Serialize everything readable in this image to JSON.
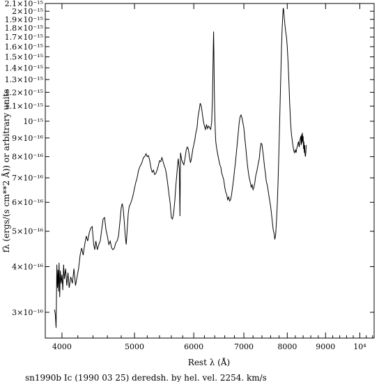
{
  "chart_data": {
    "type": "line",
    "title": "",
    "caption": "sn1990b Ic (1990 03 25) deredsh. by hel. vel.  2254. km/s",
    "xlabel": "Rest λ (Å)",
    "ylabel": "fλ (ergs/(s cm**2 Å)) or arbitrary units",
    "xscale": "log",
    "yscale": "log",
    "xlim": [
      3800,
      10450
    ],
    "ylim": [
      2.55e-16,
      2.1e-15
    ],
    "x_ticks": [
      {
        "value": 4000,
        "label": "4000"
      },
      {
        "value": 5000,
        "label": "5000"
      },
      {
        "value": 6000,
        "label": "6000"
      },
      {
        "value": 7000,
        "label": "7000"
      },
      {
        "value": 8000,
        "label": "8000"
      },
      {
        "value": 9000,
        "label": "9000"
      },
      {
        "value": 10000,
        "label": "10⁴"
      }
    ],
    "y_ticks": [
      {
        "value": 3e-16,
        "label": "3×10⁻¹⁶"
      },
      {
        "value": 4e-16,
        "label": "4×10⁻¹⁶"
      },
      {
        "value": 5e-16,
        "label": "5×10⁻¹⁶"
      },
      {
        "value": 6e-16,
        "label": "6×10⁻¹⁶"
      },
      {
        "value": 7e-16,
        "label": "7×10⁻¹⁶"
      },
      {
        "value": 8e-16,
        "label": "8×10⁻¹⁶"
      },
      {
        "value": 9e-16,
        "label": "9×10⁻¹⁶"
      },
      {
        "value": 1e-15,
        "label": "10⁻¹⁵"
      },
      {
        "value": 1.1e-15,
        "label": "1.1×10⁻¹⁵"
      },
      {
        "value": 1.2e-15,
        "label": "1.2×10⁻¹⁵"
      },
      {
        "value": 1.3e-15,
        "label": "1.3×10⁻¹⁵"
      },
      {
        "value": 1.4e-15,
        "label": "1.4×10⁻¹⁵"
      },
      {
        "value": 1.5e-15,
        "label": "1.5×10⁻¹⁵"
      },
      {
        "value": 1.6e-15,
        "label": "1.6×10⁻¹⁵"
      },
      {
        "value": 1.7e-15,
        "label": "1.7×10⁻¹⁵"
      },
      {
        "value": 1.8e-15,
        "label": "1.8×10⁻¹⁵"
      },
      {
        "value": 1.9e-15,
        "label": "1.9×10⁻¹⁵"
      },
      {
        "value": 2e-15,
        "label": "2×10⁻¹⁵"
      },
      {
        "value": 2.1e-15,
        "label": "2.1×10⁻¹⁵"
      }
    ],
    "series": [
      {
        "color": "#000000",
        "points": [
          [
            3910,
            3.05e-16
          ],
          [
            3920,
            2.95e-16
          ],
          [
            3928,
            2.72e-16
          ],
          [
            3933,
            3.35e-16
          ],
          [
            3938,
            4.05e-16
          ],
          [
            3945,
            3.5e-16
          ],
          [
            3952,
            3.92e-16
          ],
          [
            3958,
            3.42e-16
          ],
          [
            3965,
            4.1e-16
          ],
          [
            3972,
            3.3e-16
          ],
          [
            3980,
            3.9e-16
          ],
          [
            3990,
            3.6e-16
          ],
          [
            4000,
            3.8e-16
          ],
          [
            4010,
            3.45e-16
          ],
          [
            4020,
            4.05e-16
          ],
          [
            4030,
            3.7e-16
          ],
          [
            4045,
            3.95e-16
          ],
          [
            4060,
            3.55e-16
          ],
          [
            4075,
            3.85e-16
          ],
          [
            4090,
            3.5e-16
          ],
          [
            4110,
            3.75e-16
          ],
          [
            4130,
            3.6e-16
          ],
          [
            4150,
            3.95e-16
          ],
          [
            4170,
            3.55e-16
          ],
          [
            4190,
            3.75e-16
          ],
          [
            4210,
            3.95e-16
          ],
          [
            4230,
            4.3e-16
          ],
          [
            4250,
            4.5e-16
          ],
          [
            4270,
            4.3e-16
          ],
          [
            4290,
            4.6e-16
          ],
          [
            4310,
            4.85e-16
          ],
          [
            4330,
            4.7e-16
          ],
          [
            4350,
            4.95e-16
          ],
          [
            4370,
            5.1e-16
          ],
          [
            4390,
            5.15e-16
          ],
          [
            4410,
            4.6e-16
          ],
          [
            4425,
            4.45e-16
          ],
          [
            4440,
            4.7e-16
          ],
          [
            4460,
            4.45e-16
          ],
          [
            4480,
            4.6e-16
          ],
          [
            4500,
            4.7e-16
          ],
          [
            4520,
            5.05e-16
          ],
          [
            4540,
            5.4e-16
          ],
          [
            4560,
            5.45e-16
          ],
          [
            4580,
            5.05e-16
          ],
          [
            4600,
            4.85e-16
          ],
          [
            4620,
            4.6e-16
          ],
          [
            4640,
            4.7e-16
          ],
          [
            4660,
            4.5e-16
          ],
          [
            4680,
            4.45e-16
          ],
          [
            4700,
            4.5e-16
          ],
          [
            4720,
            4.65e-16
          ],
          [
            4740,
            4.7e-16
          ],
          [
            4760,
            4.85e-16
          ],
          [
            4780,
            5.3e-16
          ],
          [
            4800,
            5.8e-16
          ],
          [
            4815,
            5.95e-16
          ],
          [
            4830,
            5.75e-16
          ],
          [
            4845,
            5.3e-16
          ],
          [
            4860,
            4.85e-16
          ],
          [
            4875,
            4.6e-16
          ],
          [
            4890,
            5.1e-16
          ],
          [
            4905,
            5.6e-16
          ],
          [
            4920,
            5.85e-16
          ],
          [
            4940,
            5.95e-16
          ],
          [
            4960,
            6.1e-16
          ],
          [
            4980,
            6.3e-16
          ],
          [
            5000,
            6.55e-16
          ],
          [
            5020,
            6.8e-16
          ],
          [
            5040,
            7e-16
          ],
          [
            5060,
            7.3e-16
          ],
          [
            5080,
            7.5e-16
          ],
          [
            5100,
            7.6e-16
          ],
          [
            5120,
            7.75e-16
          ],
          [
            5140,
            7.95e-16
          ],
          [
            5160,
            8e-16
          ],
          [
            5180,
            8.15e-16
          ],
          [
            5200,
            8e-16
          ],
          [
            5220,
            8.05e-16
          ],
          [
            5240,
            7.8e-16
          ],
          [
            5260,
            7.45e-16
          ],
          [
            5280,
            7.25e-16
          ],
          [
            5300,
            7.35e-16
          ],
          [
            5320,
            7.15e-16
          ],
          [
            5340,
            7.2e-16
          ],
          [
            5360,
            7.35e-16
          ],
          [
            5380,
            7.55e-16
          ],
          [
            5400,
            7.8e-16
          ],
          [
            5420,
            7.75e-16
          ],
          [
            5440,
            7.95e-16
          ],
          [
            5460,
            7.75e-16
          ],
          [
            5480,
            7.55e-16
          ],
          [
            5500,
            7.4e-16
          ],
          [
            5520,
            7.1e-16
          ],
          [
            5540,
            6.7e-16
          ],
          [
            5560,
            6.3e-16
          ],
          [
            5580,
            5.95e-16
          ],
          [
            5600,
            5.45e-16
          ],
          [
            5620,
            5.4e-16
          ],
          [
            5640,
            5.6e-16
          ],
          [
            5660,
            6.05e-16
          ],
          [
            5680,
            6.7e-16
          ],
          [
            5700,
            7.3e-16
          ],
          [
            5720,
            7.9e-16
          ],
          [
            5740,
            7.4e-16
          ],
          [
            5750,
            5.5e-16
          ],
          [
            5760,
            8.2e-16
          ],
          [
            5780,
            7.85e-16
          ],
          [
            5800,
            7.7e-16
          ],
          [
            5820,
            7.6e-16
          ],
          [
            5840,
            7.9e-16
          ],
          [
            5860,
            8.3e-16
          ],
          [
            5880,
            8.5e-16
          ],
          [
            5900,
            8.4e-16
          ],
          [
            5920,
            8e-16
          ],
          [
            5940,
            7.7e-16
          ],
          [
            5960,
            7.95e-16
          ],
          [
            5980,
            8.35e-16
          ],
          [
            6000,
            8.6e-16
          ],
          [
            6020,
            8.9e-16
          ],
          [
            6040,
            9.3e-16
          ],
          [
            6060,
            9.6e-16
          ],
          [
            6080,
            1.03e-15
          ],
          [
            6100,
            1.07e-15
          ],
          [
            6120,
            1.12e-15
          ],
          [
            6140,
            1.1e-15
          ],
          [
            6160,
            1.05e-15
          ],
          [
            6180,
            1e-15
          ],
          [
            6200,
            9.7e-16
          ],
          [
            6220,
            9.5e-16
          ],
          [
            6240,
            9.8e-16
          ],
          [
            6260,
            9.55e-16
          ],
          [
            6280,
            9.7e-16
          ],
          [
            6300,
            9.6e-16
          ],
          [
            6320,
            9.5e-16
          ],
          [
            6340,
            9.9e-16
          ],
          [
            6355,
            1.15e-15
          ],
          [
            6365,
            1.4e-15
          ],
          [
            6372,
            1.62e-15
          ],
          [
            6378,
            1.76e-15
          ],
          [
            6385,
            1.5e-15
          ],
          [
            6392,
            1.22e-15
          ],
          [
            6400,
            1.06e-15
          ],
          [
            6410,
            9.4e-16
          ],
          [
            6420,
            8.8e-16
          ],
          [
            6440,
            8.4e-16
          ],
          [
            6460,
            8.1e-16
          ],
          [
            6480,
            7.85e-16
          ],
          [
            6500,
            7.6e-16
          ],
          [
            6520,
            7.5e-16
          ],
          [
            6540,
            7.2e-16
          ],
          [
            6560,
            7.05e-16
          ],
          [
            6580,
            6.9e-16
          ],
          [
            6600,
            6.6e-16
          ],
          [
            6620,
            6.4e-16
          ],
          [
            6640,
            6.3e-16
          ],
          [
            6660,
            6.1e-16
          ],
          [
            6680,
            6.2e-16
          ],
          [
            6700,
            6.05e-16
          ],
          [
            6720,
            6.1e-16
          ],
          [
            6740,
            6.3e-16
          ],
          [
            6760,
            6.6e-16
          ],
          [
            6780,
            6.9e-16
          ],
          [
            6800,
            7.3e-16
          ],
          [
            6820,
            7.7e-16
          ],
          [
            6840,
            8.2e-16
          ],
          [
            6860,
            8.7e-16
          ],
          [
            6880,
            9.3e-16
          ],
          [
            6900,
            9.9e-16
          ],
          [
            6920,
            1.03e-15
          ],
          [
            6940,
            1.04e-15
          ],
          [
            6960,
            1.02e-15
          ],
          [
            6980,
            9.9e-16
          ],
          [
            7000,
            9.6e-16
          ],
          [
            7020,
            9e-16
          ],
          [
            7040,
            8.5e-16
          ],
          [
            7060,
            8e-16
          ],
          [
            7080,
            7.55e-16
          ],
          [
            7100,
            7.2e-16
          ],
          [
            7120,
            6.95e-16
          ],
          [
            7140,
            6.8e-16
          ],
          [
            7160,
            6.6e-16
          ],
          [
            7180,
            6.7e-16
          ],
          [
            7200,
            6.5e-16
          ],
          [
            7220,
            6.6e-16
          ],
          [
            7240,
            6.8e-16
          ],
          [
            7260,
            7.1e-16
          ],
          [
            7280,
            7.25e-16
          ],
          [
            7300,
            7.45e-16
          ],
          [
            7320,
            7.7e-16
          ],
          [
            7340,
            7.9e-16
          ],
          [
            7360,
            8.4e-16
          ],
          [
            7380,
            8.7e-16
          ],
          [
            7400,
            8.65e-16
          ],
          [
            7420,
            8.3e-16
          ],
          [
            7440,
            7.9e-16
          ],
          [
            7460,
            7.5e-16
          ],
          [
            7480,
            7.2e-16
          ],
          [
            7500,
            6.85e-16
          ],
          [
            7520,
            6.7e-16
          ],
          [
            7540,
            6.5e-16
          ],
          [
            7560,
            6.25e-16
          ],
          [
            7580,
            6.05e-16
          ],
          [
            7600,
            5.85e-16
          ],
          [
            7620,
            5.6e-16
          ],
          [
            7640,
            5.3e-16
          ],
          [
            7660,
            5.05e-16
          ],
          [
            7680,
            4.95e-16
          ],
          [
            7700,
            4.75e-16
          ],
          [
            7720,
            4.9e-16
          ],
          [
            7740,
            5.35e-16
          ],
          [
            7760,
            6e-16
          ],
          [
            7780,
            7e-16
          ],
          [
            7800,
            8.5e-16
          ],
          [
            7820,
            1.05e-15
          ],
          [
            7840,
            1.3e-15
          ],
          [
            7860,
            1.6e-15
          ],
          [
            7875,
            1.8e-15
          ],
          [
            7890,
            1.95e-15
          ],
          [
            7900,
            2.04e-15
          ],
          [
            7910,
            2.02e-15
          ],
          [
            7925,
            1.92e-15
          ],
          [
            7940,
            1.85e-15
          ],
          [
            7960,
            1.76e-15
          ],
          [
            7980,
            1.7e-15
          ],
          [
            8000,
            1.6e-15
          ],
          [
            8020,
            1.45e-15
          ],
          [
            8040,
            1.28e-15
          ],
          [
            8060,
            1.12e-15
          ],
          [
            8080,
            1e-15
          ],
          [
            8100,
            9.3e-16
          ],
          [
            8120,
            8.9e-16
          ],
          [
            8140,
            8.6e-16
          ],
          [
            8160,
            8.3e-16
          ],
          [
            8180,
            8.2e-16
          ],
          [
            8200,
            8.35e-16
          ],
          [
            8220,
            8.2e-16
          ],
          [
            8240,
            8.45e-16
          ],
          [
            8260,
            8.6e-16
          ],
          [
            8280,
            8.8e-16
          ],
          [
            8300,
            8.5e-16
          ],
          [
            8320,
            8.9e-16
          ],
          [
            8340,
            9.1e-16
          ],
          [
            8350,
            8.6e-16
          ],
          [
            8360,
            9.2e-16
          ],
          [
            8370,
            8.7e-16
          ],
          [
            8380,
            9.3e-16
          ],
          [
            8390,
            8.8e-16
          ],
          [
            8400,
            9.1e-16
          ],
          [
            8410,
            8.4e-16
          ],
          [
            8420,
            8.8e-16
          ],
          [
            8430,
            8.2e-16
          ],
          [
            8440,
            8.6e-16
          ],
          [
            8450,
            8.1e-16
          ],
          [
            8460,
            8e-16
          ],
          [
            8470,
            8.2e-16
          ],
          [
            8480,
            8.6e-16
          ]
        ]
      }
    ]
  }
}
